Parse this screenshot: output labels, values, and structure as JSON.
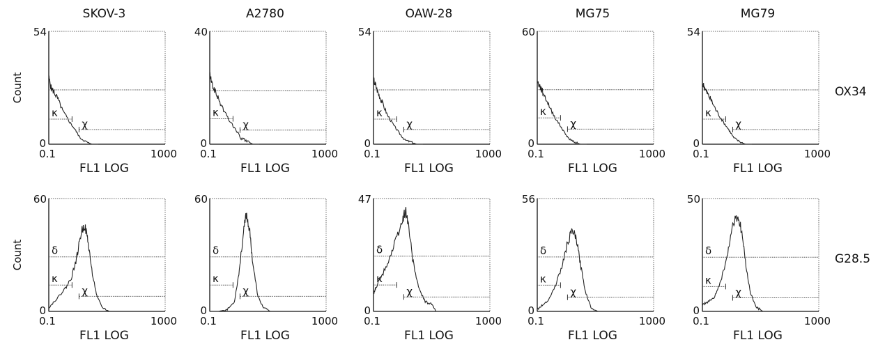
{
  "figure": {
    "columns": [
      "SKOV-3",
      "A2780",
      "OAW-28",
      "MG75",
      "MG79"
    ],
    "rows": [
      "OX34",
      "G28.5"
    ],
    "y_axis_label": "Count",
    "x_axis_label": "FL1 LOG",
    "x_tick_min": "0.1",
    "x_tick_max": "1000",
    "y_tick_min": "0"
  },
  "chart_data": [
    {
      "type": "histogram",
      "row": "OX34",
      "column": "SKOV-3",
      "ylim": [
        0,
        54
      ],
      "x_scale": "log",
      "xlim": [
        0.1,
        1000
      ],
      "gates": {
        "delta_y": 26,
        "kappa_y": 12,
        "chi_y": 7
      },
      "gate_labels": [
        "κ",
        "χ"
      ],
      "x": [
        0.1,
        0.12,
        0.15,
        0.2,
        0.3,
        0.5,
        0.8,
        1.2,
        2,
        3,
        5
      ],
      "y": [
        32,
        27,
        25,
        22,
        16,
        11,
        7,
        3,
        1,
        0,
        0
      ]
    },
    {
      "type": "histogram",
      "row": "OX34",
      "column": "A2780",
      "ylim": [
        0,
        40
      ],
      "x_scale": "log",
      "xlim": [
        0.1,
        1000
      ],
      "gates": {
        "delta_y": 19,
        "kappa_y": 9,
        "chi_y": 5
      },
      "gate_labels": [
        "κ",
        "χ"
      ],
      "x": [
        0.1,
        0.12,
        0.15,
        0.2,
        0.3,
        0.5,
        0.8,
        1.2,
        2,
        3,
        5
      ],
      "y": [
        25,
        21,
        19,
        16,
        12,
        8,
        5,
        2,
        1,
        0,
        0
      ]
    },
    {
      "type": "histogram",
      "row": "OX34",
      "column": "OAW-28",
      "ylim": [
        0,
        54
      ],
      "x_scale": "log",
      "xlim": [
        0.1,
        1000
      ],
      "gates": {
        "delta_y": 26,
        "kappa_y": 12,
        "chi_y": 7
      },
      "gate_labels": [
        "κ",
        "χ"
      ],
      "x": [
        0.1,
        0.12,
        0.15,
        0.2,
        0.3,
        0.5,
        0.8,
        1.2,
        2,
        3,
        5
      ],
      "y": [
        31,
        28,
        24,
        20,
        14,
        9,
        5,
        2,
        1,
        0,
        0
      ]
    },
    {
      "type": "histogram",
      "row": "OX34",
      "column": "MG75",
      "ylim": [
        0,
        60
      ],
      "x_scale": "log",
      "xlim": [
        0.1,
        1000
      ],
      "gates": {
        "delta_y": 29,
        "kappa_y": 14,
        "chi_y": 8
      },
      "gate_labels": [
        "κ",
        "χ"
      ],
      "x": [
        0.1,
        0.12,
        0.15,
        0.2,
        0.3,
        0.5,
        0.8,
        1.2,
        2,
        3,
        5
      ],
      "y": [
        33,
        31,
        28,
        24,
        18,
        12,
        7,
        3,
        1,
        0,
        0
      ]
    },
    {
      "type": "histogram",
      "row": "OX34",
      "column": "MG79",
      "ylim": [
        0,
        54
      ],
      "x_scale": "log",
      "xlim": [
        0.1,
        1000
      ],
      "gates": {
        "delta_y": 26,
        "kappa_y": 12,
        "chi_y": 7
      },
      "gate_labels": [
        "κ",
        "χ"
      ],
      "x": [
        0.1,
        0.12,
        0.15,
        0.2,
        0.3,
        0.5,
        0.8,
        1.2,
        2,
        3,
        5
      ],
      "y": [
        29,
        27,
        24,
        21,
        16,
        11,
        7,
        3,
        1,
        0,
        0
      ]
    },
    {
      "type": "histogram",
      "row": "G28.5",
      "column": "SKOV-3",
      "ylim": [
        0,
        60
      ],
      "x_scale": "log",
      "xlim": [
        0.1,
        1000
      ],
      "gates": {
        "delta_y": 29,
        "kappa_y": 14,
        "chi_y": 8
      },
      "gate_labels": [
        "δ",
        "κ",
        "χ"
      ],
      "x": [
        0.1,
        0.15,
        0.25,
        0.4,
        0.6,
        0.9,
        1.3,
        1.7,
        2.2,
        3,
        4.5,
        7,
        12
      ],
      "y": [
        2,
        5,
        9,
        13,
        18,
        28,
        42,
        46,
        38,
        22,
        8,
        2,
        0
      ]
    },
    {
      "type": "histogram",
      "row": "G28.5",
      "column": "A2780",
      "ylim": [
        0,
        60
      ],
      "x_scale": "log",
      "xlim": [
        0.1,
        1000
      ],
      "gates": {
        "delta_y": 29,
        "kappa_y": 14,
        "chi_y": 8
      },
      "gate_labels": [
        "δ",
        "κ",
        "χ"
      ],
      "x": [
        0.1,
        0.2,
        0.4,
        0.7,
        1.0,
        1.4,
        1.8,
        2.3,
        3,
        4.5,
        7,
        12
      ],
      "y": [
        0,
        0,
        1,
        5,
        20,
        40,
        52,
        44,
        26,
        8,
        2,
        0
      ]
    },
    {
      "type": "histogram",
      "row": "G28.5",
      "column": "OAW-28",
      "ylim": [
        0,
        47
      ],
      "x_scale": "log",
      "xlim": [
        0.1,
        1000
      ],
      "gates": {
        "delta_y": 23,
        "kappa_y": 11,
        "chi_y": 6
      },
      "gate_labels": [
        "δ",
        "κ",
        "χ"
      ],
      "x": [
        0.1,
        0.12,
        0.2,
        0.35,
        0.6,
        1.0,
        1.3,
        1.6,
        2.2,
        3.5,
        6,
        10,
        14
      ],
      "y": [
        7,
        10,
        15,
        22,
        30,
        38,
        42,
        36,
        22,
        10,
        4,
        3,
        0
      ]
    },
    {
      "type": "histogram",
      "row": "G28.5",
      "column": "MG75",
      "ylim": [
        0,
        56
      ],
      "x_scale": "log",
      "xlim": [
        0.1,
        1000
      ],
      "gates": {
        "delta_y": 27,
        "kappa_y": 13,
        "chi_y": 7
      },
      "gate_labels": [
        "δ",
        "κ",
        "χ"
      ],
      "x": [
        0.1,
        0.15,
        0.25,
        0.4,
        0.7,
        1.1,
        1.6,
        2.2,
        3,
        4.5,
        7,
        12
      ],
      "y": [
        1,
        3,
        6,
        12,
        22,
        34,
        40,
        36,
        24,
        10,
        2,
        0
      ]
    },
    {
      "type": "histogram",
      "row": "G28.5",
      "column": "MG79",
      "ylim": [
        0,
        50
      ],
      "x_scale": "log",
      "xlim": [
        0.1,
        1000
      ],
      "gates": {
        "delta_y": 24,
        "kappa_y": 11,
        "chi_y": 6
      },
      "gate_labels": [
        "δ",
        "κ",
        "χ"
      ],
      "x": [
        0.1,
        0.15,
        0.25,
        0.4,
        0.7,
        1.1,
        1.6,
        2.2,
        3,
        4.5,
        7,
        12
      ],
      "y": [
        3,
        4,
        6,
        12,
        24,
        38,
        42,
        36,
        22,
        8,
        2,
        0
      ]
    }
  ]
}
